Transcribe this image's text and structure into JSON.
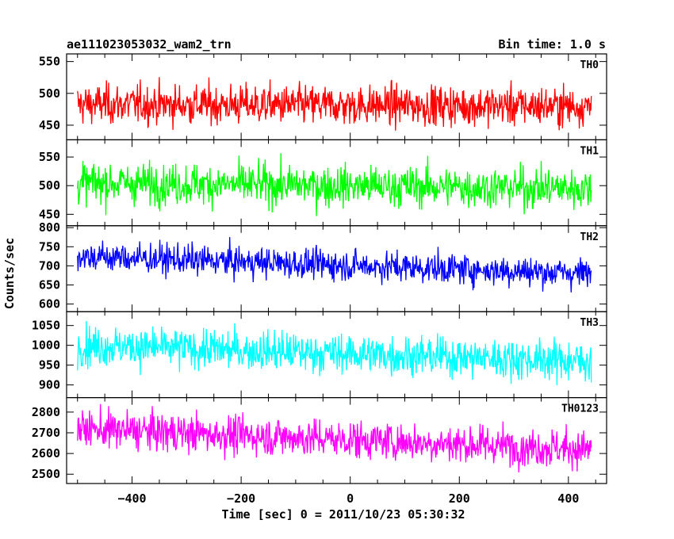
{
  "header": {
    "object_name": "ae111023053032_wam2_trn",
    "bin_time": "Bin time: 1.0 s"
  },
  "chart_data": {
    "type": "line",
    "xlabel": "Time [sec] 0 = 2011/10/23 05:30:32",
    "ylabel": "Counts/sec",
    "xlim": [
      -520,
      470
    ],
    "x_start": -500,
    "x_end": 442,
    "x_step": 1,
    "x_ticks": [
      -400,
      -200,
      0,
      200,
      400
    ],
    "panels": [
      {
        "name": "TH0",
        "color": "#ff0000",
        "ylim": [
          427,
          562
        ],
        "y_ticks": [
          450,
          500,
          550
        ],
        "mean_start": 483,
        "mean_end": 480,
        "noise": 22
      },
      {
        "name": "TH1",
        "color": "#00ff00",
        "ylim": [
          430,
          580
        ],
        "y_ticks": [
          450,
          500,
          550
        ],
        "mean_start": 505,
        "mean_end": 495,
        "noise": 25
      },
      {
        "name": "TH2",
        "color": "#0000ff",
        "ylim": [
          580,
          805
        ],
        "y_ticks": [
          600,
          650,
          700,
          750,
          800
        ],
        "mean_start": 725,
        "mean_end": 680,
        "noise": 28
      },
      {
        "name": "TH3",
        "color": "#00ffff",
        "ylim": [
          868,
          1085
        ],
        "y_ticks": [
          900,
          950,
          1000,
          1050
        ],
        "mean_start": 1000,
        "mean_end": 960,
        "noise": 35
      },
      {
        "name": "TH0123",
        "color": "#ff00ff",
        "ylim": [
          2455,
          2870
        ],
        "y_ticks": [
          2500,
          2600,
          2700,
          2800
        ],
        "mean_start": 2720,
        "mean_end": 2620,
        "noise": 65
      }
    ]
  }
}
